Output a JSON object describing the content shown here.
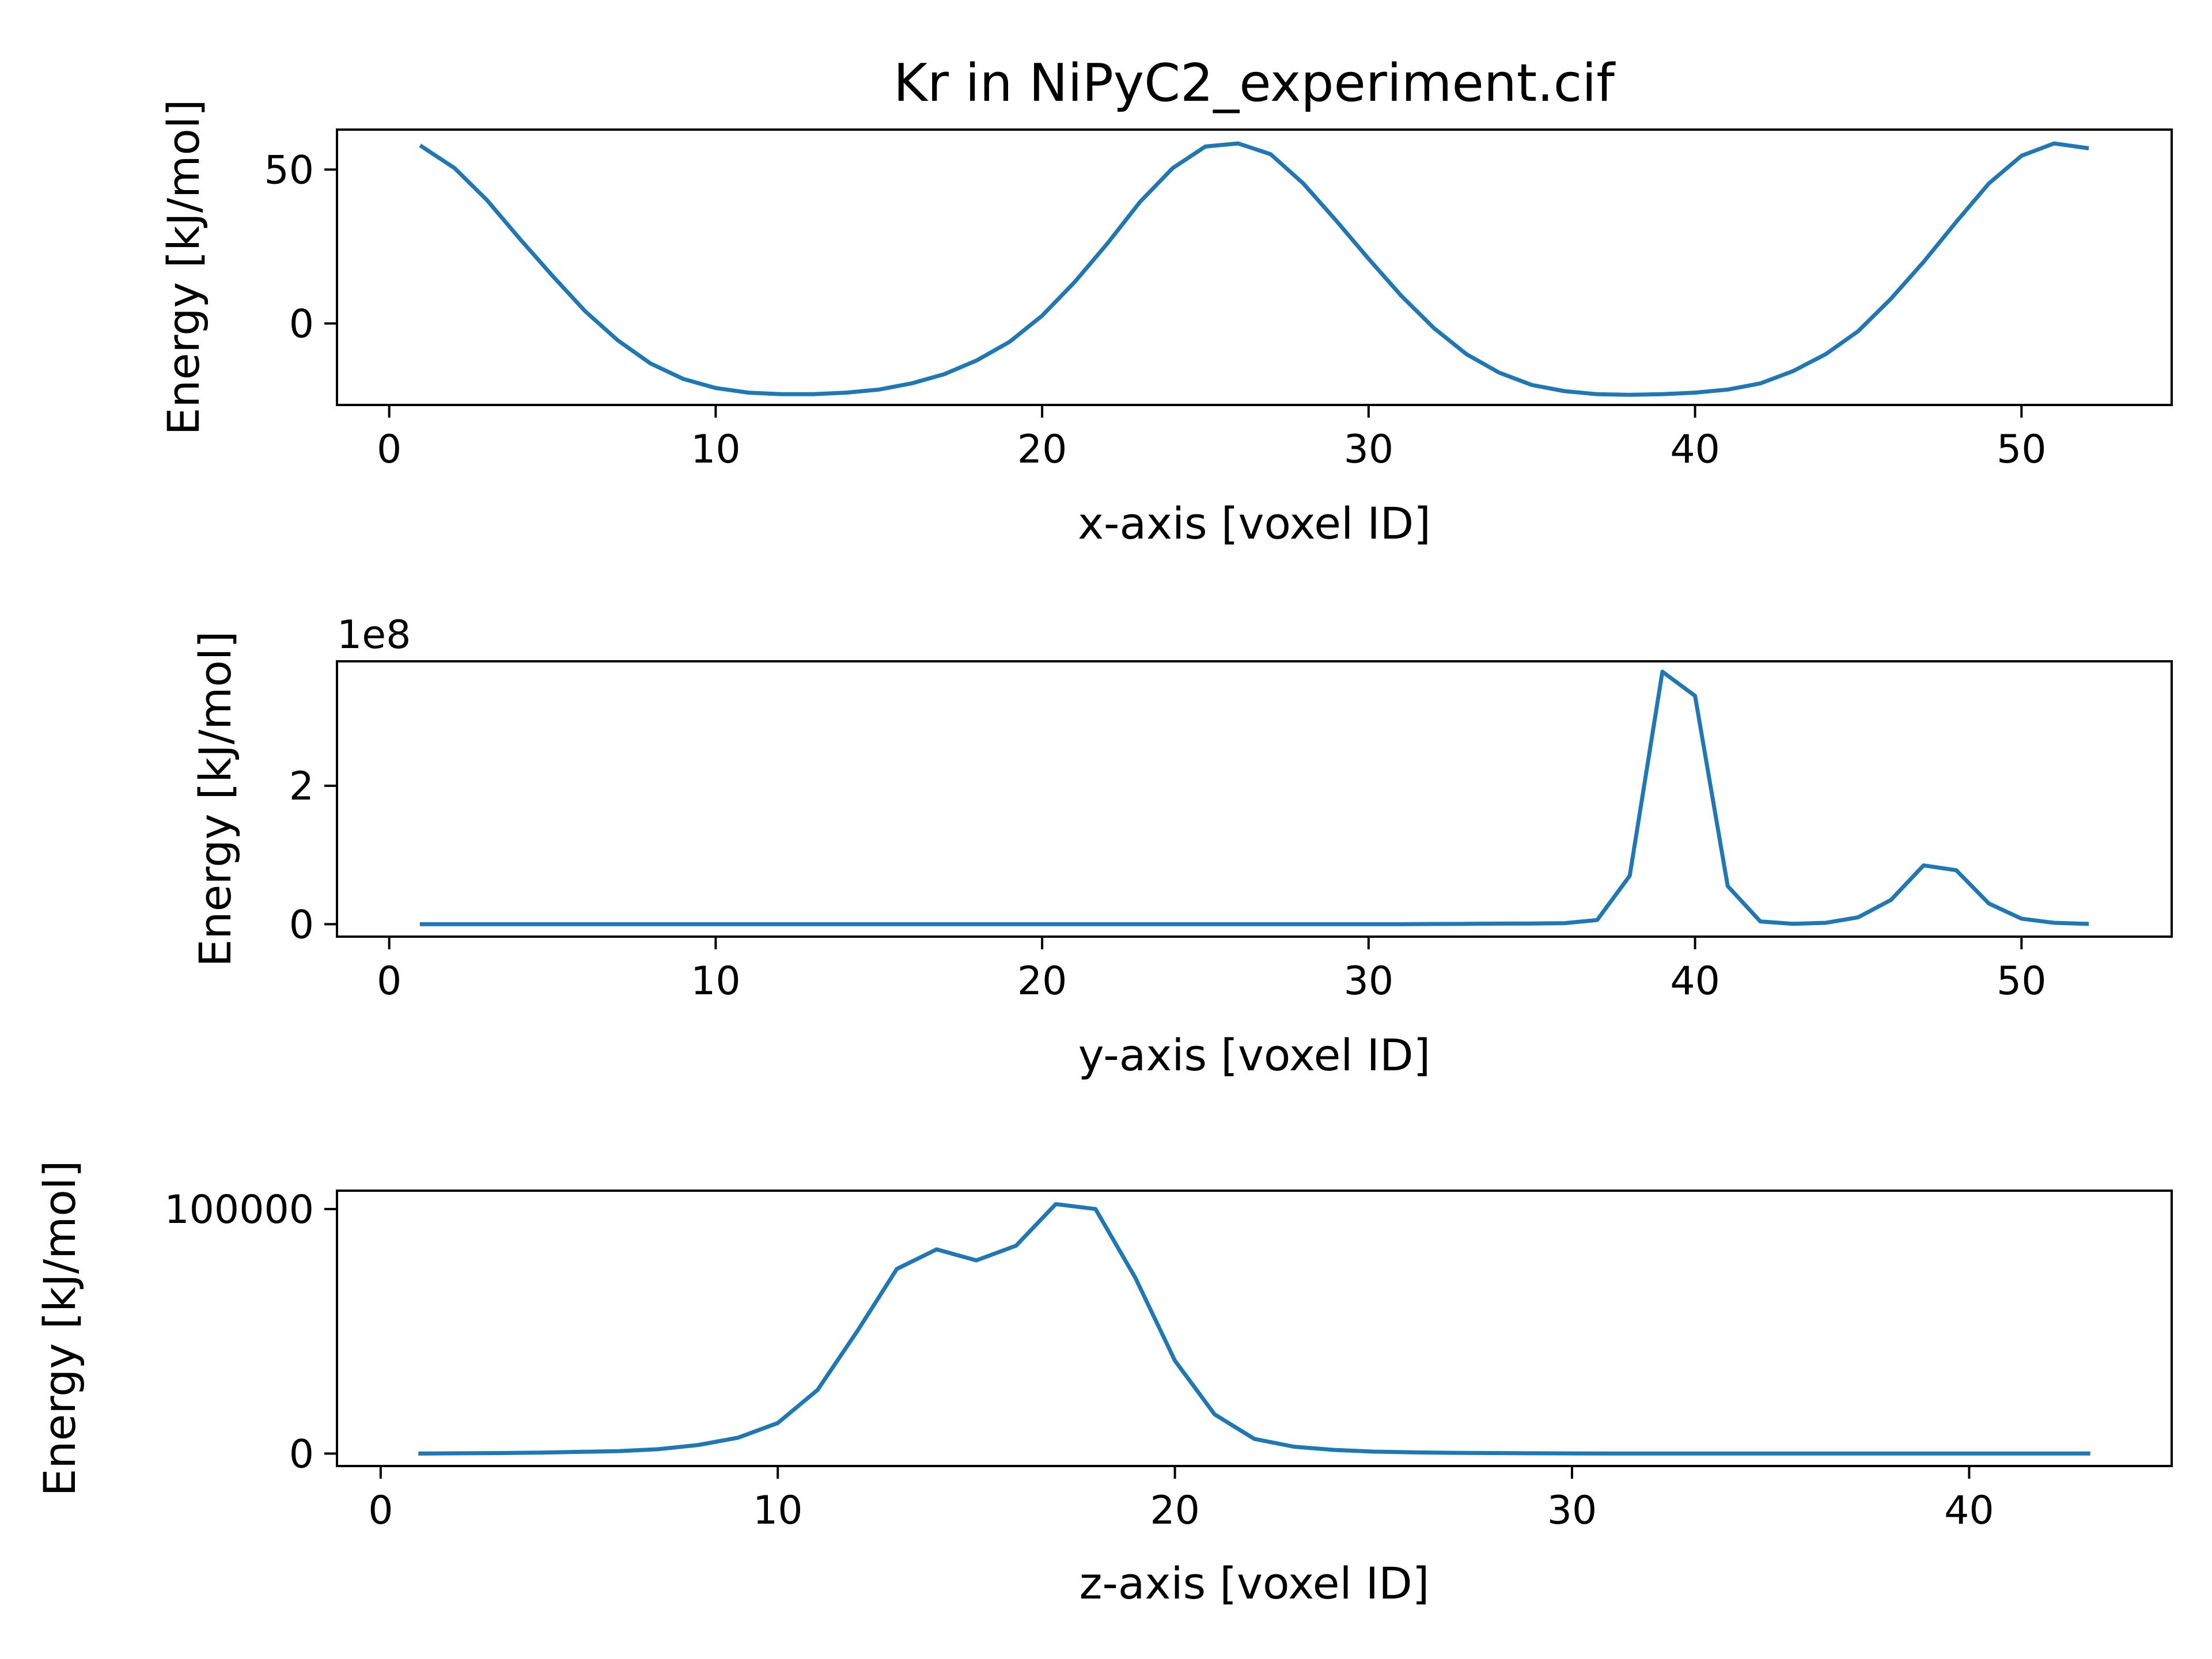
{
  "chart_data": [
    {
      "type": "line",
      "title": "Kr in NiPyC2_experiment.cif",
      "xlabel": "x-axis [voxel ID]",
      "ylabel": "Energy [kJ/mol]",
      "xlim": [
        -1.6,
        54.6
      ],
      "ylim": [
        -26.5,
        63
      ],
      "xticks": [
        0,
        10,
        20,
        30,
        40,
        50
      ],
      "yticks": [
        0,
        50
      ],
      "ytick_labels": [
        "0",
        "50"
      ],
      "x": [
        1,
        2,
        3,
        4,
        5,
        6,
        7,
        8,
        9,
        10,
        11,
        12,
        13,
        14,
        15,
        16,
        17,
        18,
        19,
        20,
        21,
        22,
        23,
        24,
        25,
        26,
        27,
        28,
        29,
        30,
        31,
        32,
        33,
        34,
        35,
        36,
        37,
        38,
        39,
        40,
        41,
        42,
        43,
        44,
        45,
        46,
        47,
        48,
        49,
        50,
        51,
        52
      ],
      "series": [
        {
          "name": "Kr",
          "color": "#1f77b4",
          "values": [
            57.5,
            50.5,
            40,
            27.5,
            15.5,
            4,
            -5.5,
            -13,
            -18,
            -21,
            -22.5,
            -23,
            -23,
            -22.5,
            -21.5,
            -19.5,
            -16.5,
            -12,
            -6,
            2.5,
            13.5,
            26,
            39.5,
            50.5,
            57.5,
            58.5,
            55,
            45.5,
            33.5,
            21,
            9,
            -1.5,
            -10,
            -16,
            -20,
            -22,
            -23,
            -23.2,
            -23,
            -22.5,
            -21.5,
            -19.5,
            -15.5,
            -10,
            -2.5,
            8,
            20,
            33,
            45.5,
            54.5,
            58.5,
            57
          ]
        }
      ]
    },
    {
      "type": "line",
      "xlabel": "y-axis [voxel ID]",
      "ylabel": "Energy [kJ/mol]",
      "offset_label": "1e8",
      "xlim": [
        -1.6,
        54.6
      ],
      "ylim": [
        -0.18,
        3.8
      ],
      "xticks": [
        0,
        10,
        20,
        30,
        40,
        50
      ],
      "yticks": [
        0,
        2
      ],
      "ytick_labels": [
        "0",
        "2"
      ],
      "x": [
        1,
        2,
        3,
        4,
        5,
        6,
        7,
        8,
        9,
        10,
        11,
        12,
        13,
        14,
        15,
        16,
        17,
        18,
        19,
        20,
        21,
        22,
        23,
        24,
        25,
        26,
        27,
        28,
        29,
        30,
        31,
        32,
        33,
        34,
        35,
        36,
        37,
        38,
        39,
        40,
        41,
        42,
        43,
        44,
        45,
        46,
        47,
        48,
        49,
        50,
        51,
        52
      ],
      "series": [
        {
          "name": "Kr",
          "color": "#1f77b4",
          "values": [
            0,
            0,
            0,
            0,
            0,
            0,
            0,
            0,
            0,
            0,
            0,
            0,
            0,
            0,
            0,
            0,
            0,
            0,
            0,
            0,
            0,
            0,
            0,
            0,
            0,
            0,
            0,
            0,
            0,
            0,
            0,
            0.003,
            0.005,
            0.008,
            0.01,
            0.015,
            0.06,
            0.7,
            3.65,
            3.3,
            0.55,
            0.04,
            0.005,
            0.02,
            0.1,
            0.35,
            0.85,
            0.78,
            0.3,
            0.08,
            0.02,
            0.005
          ]
        }
      ]
    },
    {
      "type": "line",
      "xlabel": "z-axis [voxel ID]",
      "ylabel": "Energy [kJ/mol]",
      "xlim": [
        -1.1,
        45.1
      ],
      "ylim": [
        -5100,
        107500
      ],
      "xticks": [
        0,
        10,
        20,
        30,
        40
      ],
      "yticks": [
        0,
        100000
      ],
      "ytick_labels": [
        "0",
        "100000"
      ],
      "x": [
        1,
        2,
        3,
        4,
        5,
        6,
        7,
        8,
        9,
        10,
        11,
        12,
        13,
        14,
        15,
        16,
        17,
        18,
        19,
        20,
        21,
        22,
        23,
        24,
        25,
        26,
        27,
        28,
        29,
        30,
        31,
        32,
        33,
        34,
        35,
        36,
        37,
        38,
        39,
        40,
        41,
        42,
        43
      ],
      "series": [
        {
          "name": "Kr",
          "color": "#1f77b4",
          "values": [
            0,
            100,
            200,
            400,
            700,
            1000,
            1800,
            3500,
            6500,
            12500,
            26000,
            50000,
            75500,
            83500,
            79000,
            85000,
            102000,
            100000,
            72000,
            38000,
            16000,
            6000,
            2800,
            1500,
            800,
            500,
            300,
            200,
            100,
            50,
            0,
            0,
            0,
            0,
            0,
            0,
            0,
            0,
            0,
            0,
            0,
            0,
            0
          ]
        }
      ]
    }
  ]
}
